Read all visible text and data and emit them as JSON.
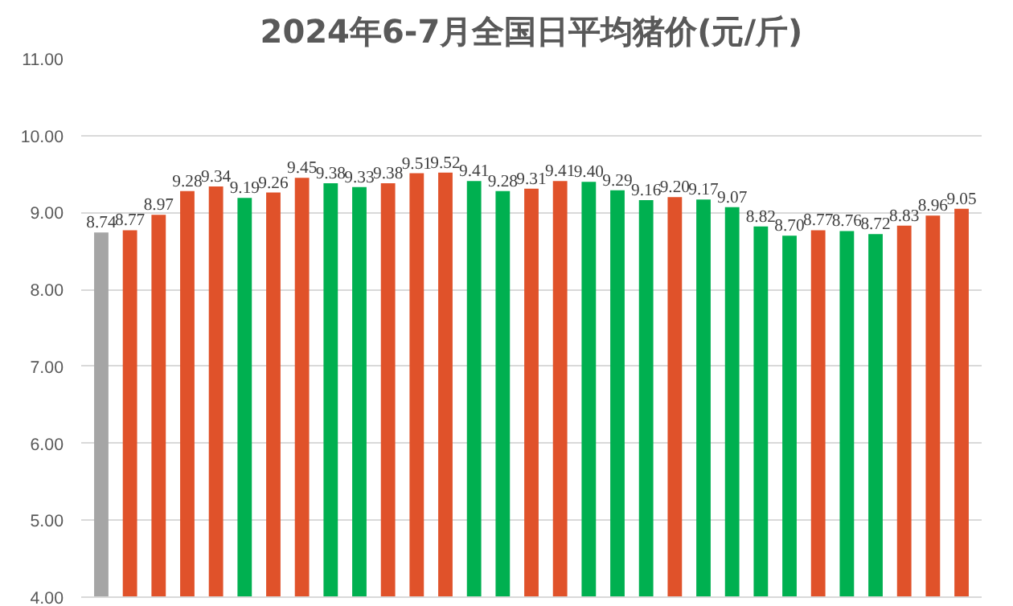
{
  "chart_data": {
    "type": "bar",
    "title": "2024年6-7月全国日平均猪价(元/斤)",
    "categories": [
      null,
      null,
      null,
      null,
      null,
      null,
      null,
      null,
      null,
      null,
      null,
      null,
      null,
      null,
      null,
      null,
      null,
      null,
      null,
      null,
      null,
      null,
      null,
      null,
      null,
      null,
      null,
      null,
      null,
      null,
      null
    ],
    "values": [
      8.74,
      8.77,
      8.97,
      9.28,
      9.34,
      9.19,
      9.26,
      9.45,
      9.38,
      9.33,
      9.38,
      9.51,
      9.52,
      9.41,
      9.28,
      9.31,
      9.41,
      9.4,
      9.29,
      9.16,
      9.2,
      9.17,
      9.07,
      8.82,
      8.7,
      8.77,
      8.76,
      8.72,
      8.83,
      8.96,
      9.05
    ],
    "value_labels": [
      "8.74",
      "8.77",
      "8.97",
      "9.28",
      "9.34",
      "9.19",
      "9.26",
      "9.45",
      "9.38",
      "9.33",
      "9.38",
      "9.51",
      "9.52",
      "9.41",
      "9.28",
      "9.31",
      "9.41",
      "9.40",
      "9.29",
      "9.16",
      "9.20",
      "9.17",
      "9.07",
      "8.82",
      "8.70",
      "8.77",
      "8.76",
      "8.72",
      "8.83",
      "8.96",
      "9.05"
    ],
    "colors": [
      "#a5a5a5",
      "#e0522a",
      "#e0522a",
      "#e0522a",
      "#e0522a",
      "#00b050",
      "#e0522a",
      "#e0522a",
      "#00b050",
      "#00b050",
      "#e0522a",
      "#e0522a",
      "#e0522a",
      "#00b050",
      "#00b050",
      "#e0522a",
      "#e0522a",
      "#00b050",
      "#00b050",
      "#00b050",
      "#e0522a",
      "#00b050",
      "#00b050",
      "#00b050",
      "#00b050",
      "#e0522a",
      "#00b050",
      "#00b050",
      "#e0522a",
      "#e0522a",
      "#e0522a"
    ],
    "ylim": [
      4,
      11
    ],
    "yticks": [
      {
        "value": 4,
        "label": "4.00"
      },
      {
        "value": 5,
        "label": "5.00"
      },
      {
        "value": 6,
        "label": "6.00"
      },
      {
        "value": 7,
        "label": "7.00"
      },
      {
        "value": 8,
        "label": "8.00"
      },
      {
        "value": 9,
        "label": "9.00"
      },
      {
        "value": 10,
        "label": "10.00"
      },
      {
        "value": 11,
        "label": "11.00"
      }
    ],
    "grid": "y"
  }
}
